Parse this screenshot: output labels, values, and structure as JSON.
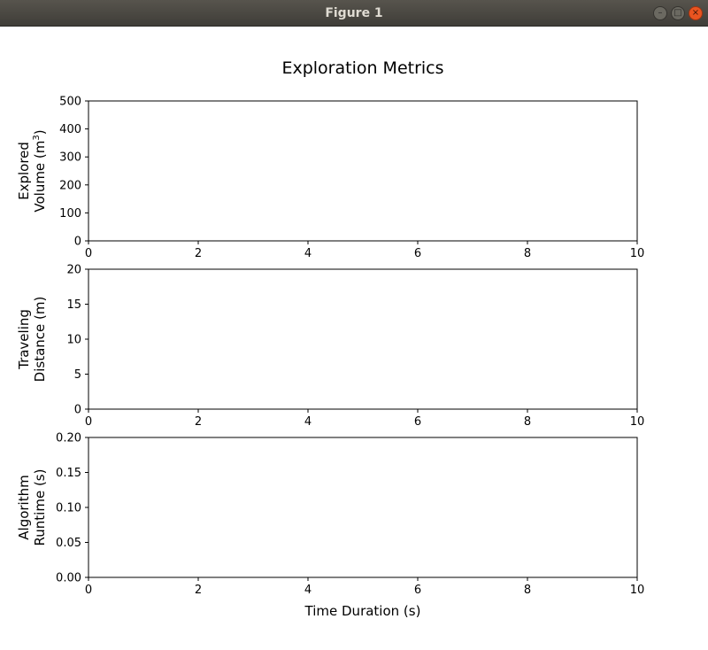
{
  "window": {
    "title": "Figure 1",
    "buttons": {
      "minimize": "–",
      "maximize": "□",
      "close": "×"
    }
  },
  "chart_data": {
    "type": "line",
    "title": "Exploration Metrics",
    "xlabel": "Time Duration (s)",
    "xlim": [
      0,
      10
    ],
    "xticks": [
      "0",
      "2",
      "4",
      "6",
      "8",
      "10"
    ],
    "grid": false,
    "subplots": [
      {
        "ylabel_line1": "Explored",
        "ylabel_line2": "Volume (m",
        "ylabel_sup": "3",
        "ylabel_end": ")",
        "ylim": [
          0,
          500
        ],
        "yticks": [
          "0",
          "100",
          "200",
          "300",
          "400",
          "500"
        ],
        "series": []
      },
      {
        "ylabel_line1": "Traveling",
        "ylabel_line2": "Distance (m)",
        "ylim": [
          0,
          20
        ],
        "yticks": [
          "0",
          "5",
          "10",
          "15",
          "20"
        ],
        "series": []
      },
      {
        "ylabel_line1": "Algorithm",
        "ylabel_line2": "Runtime (s)",
        "ylim": [
          0,
          0.2
        ],
        "yticks": [
          "0.00",
          "0.05",
          "0.10",
          "0.15",
          "0.20"
        ],
        "series": []
      }
    ]
  }
}
